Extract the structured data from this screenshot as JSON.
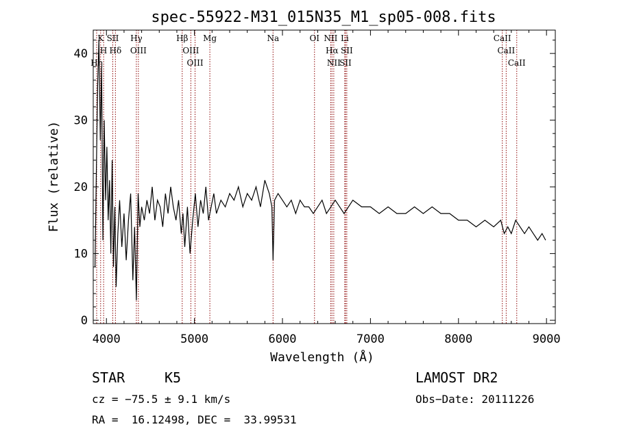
{
  "chart_data": {
    "type": "line",
    "title": "spec-55922-M31_015N35_M1_sp05-008.fits",
    "xlabel": "Wavelength (Å)",
    "ylabel": "Flux (relative)",
    "xlim": [
      3850,
      9100
    ],
    "ylim": [
      -0.5,
      43.5
    ],
    "xticks": [
      4000,
      5000,
      6000,
      7000,
      8000,
      9000
    ],
    "yticks": [
      0,
      10,
      20,
      30,
      40
    ],
    "grid": false,
    "line_color": "#000000",
    "marker_color": "#8b0000",
    "spectral_lines": [
      {
        "label": "K",
        "x": 3934
      },
      {
        "label": "H",
        "x": 3968
      },
      {
        "label": "Hη",
        "x": 3889
      },
      {
        "label": "SII",
        "x": 4072
      },
      {
        "label": "Hδ",
        "x": 4102
      },
      {
        "label": "Hγ",
        "x": 4340
      },
      {
        "label": "OIII",
        "x": 4363
      },
      {
        "label": "Hβ",
        "x": 4861
      },
      {
        "label": "OIII",
        "x": 4959
      },
      {
        "label": "OIII",
        "x": 5007
      },
      {
        "label": "Mg",
        "x": 5175
      },
      {
        "label": "Na",
        "x": 5893
      },
      {
        "label": "OI",
        "x": 6364
      },
      {
        "label": "NII",
        "x": 6548
      },
      {
        "label": "Hα",
        "x": 6563
      },
      {
        "label": "NII",
        "x": 6583
      },
      {
        "label": "Li",
        "x": 6708
      },
      {
        "label": "SII",
        "x": 6716
      },
      {
        "label": "SII",
        "x": 6731
      },
      {
        "label": "CaII",
        "x": 8498
      },
      {
        "label": "CaII",
        "x": 8542
      },
      {
        "label": "CaII",
        "x": 8662
      }
    ],
    "series": [
      {
        "x": [
          3870,
          3885,
          3900,
          3915,
          3930,
          3945,
          3960,
          3975,
          3990,
          4005,
          4020,
          4035,
          4050,
          4065,
          4080,
          4095,
          4110,
          4130,
          4150,
          4175,
          4200,
          4225,
          4250,
          4275,
          4300,
          4320,
          4340,
          4360,
          4380,
          4400,
          4430,
          4460,
          4490,
          4520,
          4550,
          4580,
          4610,
          4640,
          4670,
          4700,
          4730,
          4760,
          4790,
          4820,
          4850,
          4870,
          4890,
          4920,
          4950,
          4980,
          5010,
          5040,
          5070,
          5100,
          5130,
          5160,
          5190,
          5220,
          5250,
          5300,
          5350,
          5400,
          5450,
          5500,
          5550,
          5600,
          5650,
          5700,
          5750,
          5800,
          5850,
          5880,
          5893,
          5910,
          5950,
          6000,
          6050,
          6100,
          6150,
          6200,
          6250,
          6300,
          6350,
          6400,
          6450,
          6500,
          6550,
          6600,
          6650,
          6700,
          6750,
          6800,
          6900,
          7000,
          7100,
          7200,
          7300,
          7400,
          7500,
          7600,
          7700,
          7800,
          7900,
          8000,
          8100,
          8200,
          8300,
          8400,
          8480,
          8520,
          8560,
          8600,
          8650,
          8700,
          8750,
          8800,
          8850,
          8900,
          8950,
          8990
        ],
        "y": [
          8,
          22,
          35,
          42,
          27,
          38,
          12,
          30,
          18,
          26,
          15,
          21,
          10,
          24,
          8,
          17,
          5,
          13,
          18,
          11,
          16,
          9,
          15,
          19,
          6,
          14,
          3,
          19,
          14,
          17,
          15,
          18,
          16,
          20,
          15,
          18,
          17,
          14,
          19,
          16,
          20,
          17,
          15,
          18,
          13,
          16,
          11,
          17,
          10,
          15,
          19,
          14,
          18,
          16,
          20,
          15,
          17,
          19,
          16,
          18,
          17,
          19,
          18,
          20,
          17,
          19,
          18,
          20,
          17,
          21,
          19,
          17,
          9,
          18,
          19,
          18,
          17,
          18,
          16,
          18,
          17,
          17,
          16,
          17,
          18,
          16,
          17,
          18,
          17,
          16,
          17,
          18,
          17,
          17,
          16,
          17,
          16,
          16,
          17,
          16,
          17,
          16,
          16,
          15,
          15,
          14,
          15,
          14,
          15,
          13,
          14,
          13,
          15,
          14,
          13,
          14,
          13,
          12,
          13,
          12
        ]
      }
    ]
  },
  "info": {
    "class_label": "STAR",
    "subclass": "K5",
    "survey": "LAMOST DR2",
    "redshift": "cz = −75.5 ± 9.1 km/s",
    "obs_date": "Obs−Date: 20111226",
    "coords": "RA =  16.12498, DEC =  33.99531"
  }
}
